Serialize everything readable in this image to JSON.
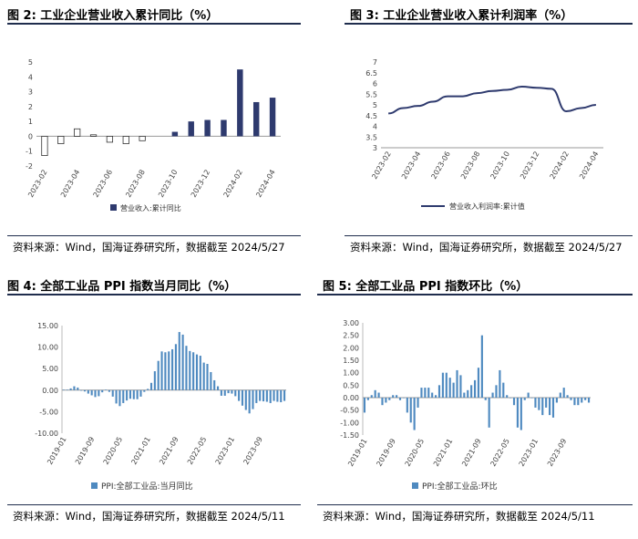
{
  "panels": {
    "p2": {
      "title": "图 2:  工业企业营业收入累计同比（%）",
      "source": "资料来源：Wind，国海证券研究所，数据截至 2024/5/27"
    },
    "p3": {
      "title": "图 3:  工业企业营业收入累计利润率（%）",
      "source": "资料来源：Wind，国海证券研究所，数据截至 2024/5/27"
    },
    "p4": {
      "title": "图 4:  全部工业品 PPI 指数当月同比（%）",
      "source": "资料来源：Wind，国海证券研究所，数据截至 2024/5/11"
    },
    "p5": {
      "title": "图 5:  全部工业品 PPI 指数环比（%）",
      "source": "资料来源：Wind，国海证券研究所，数据截至 2024/5/11"
    }
  },
  "colors": {
    "navy": "#2e3a6e",
    "steel": "#4f8ac0",
    "rule": "#1f2d4d"
  },
  "chart_data": [
    {
      "id": "c2",
      "type": "bar",
      "x": [
        "2023-02",
        "2023-03",
        "2023-04",
        "2023-05",
        "2023-06",
        "2023-07",
        "2023-08",
        "2023-09",
        "2023-10",
        "2023-11",
        "2023-12",
        "2024-01",
        "2024-02",
        "2024-03",
        "2024-04"
      ],
      "series": [
        {
          "name": "营业收入:累计同比",
          "values": [
            -1.3,
            -0.5,
            0.5,
            0.1,
            -0.4,
            -0.5,
            -0.3,
            null,
            0.3,
            1.0,
            1.1,
            1.1,
            4.5,
            2.3,
            2.6
          ]
        }
      ],
      "hollow_until": "2023-08",
      "tick_labels": [
        "2023-02",
        "2023-04",
        "2023-06",
        "2023-08",
        "2023-10",
        "2023-12",
        "2024-02",
        "2024-04"
      ],
      "ylim": [
        -2,
        5
      ],
      "yticks": [
        "-2",
        "-1",
        "0",
        "1",
        "2",
        "3",
        "4",
        "5"
      ]
    },
    {
      "id": "c3",
      "type": "line",
      "x": [
        "2023-02",
        "2023-03",
        "2023-04",
        "2023-05",
        "2023-06",
        "2023-07",
        "2023-08",
        "2023-09",
        "2023-10",
        "2023-11",
        "2023-12",
        "2024-01",
        "2024-02",
        "2024-03",
        "2024-04"
      ],
      "series": [
        {
          "name": "营业收入利润率:累计值",
          "values": [
            4.6,
            4.85,
            4.95,
            5.15,
            5.4,
            5.4,
            5.55,
            5.65,
            5.7,
            5.85,
            5.8,
            5.75,
            4.7,
            4.85,
            5.0
          ]
        }
      ],
      "tick_labels": [
        "2023-02",
        "2023-04",
        "2023-06",
        "2023-08",
        "2023-10",
        "2023-12",
        "2024-02",
        "2024-04"
      ],
      "ylim": [
        3,
        7
      ],
      "yticks": [
        "3",
        "3.5",
        "4",
        "4.5",
        "5",
        "5.5",
        "6",
        "6.5",
        "7"
      ]
    },
    {
      "id": "c4",
      "type": "bar",
      "start": "2019-01",
      "series": [
        {
          "name": "PPI:全部工业品:当月同比",
          "values": [
            0.1,
            0.1,
            0.4,
            0.9,
            0.6,
            0.0,
            -0.3,
            -0.8,
            -1.2,
            -1.6,
            -1.4,
            -0.5,
            0.1,
            -0.4,
            -1.5,
            -3.1,
            -3.7,
            -3.0,
            -2.4,
            -2.0,
            -2.1,
            -2.1,
            -1.5,
            -0.4,
            0.3,
            1.7,
            4.4,
            6.8,
            9.0,
            8.8,
            9.0,
            9.5,
            10.7,
            13.5,
            12.9,
            10.3,
            9.1,
            8.8,
            8.3,
            8.0,
            6.4,
            6.1,
            4.2,
            2.3,
            0.9,
            -1.3,
            -1.3,
            -0.7,
            -0.8,
            -1.4,
            -2.5,
            -3.6,
            -4.6,
            -5.4,
            -4.4,
            -3.0,
            -2.5,
            -2.6,
            -2.7,
            -3.0,
            -2.5,
            -2.7,
            -2.8,
            -2.5
          ]
        }
      ],
      "tick_labels": [
        "2019-01",
        "2019-09",
        "2020-05",
        "2021-01",
        "2021-09",
        "2022-05",
        "2023-01",
        "2023-09"
      ],
      "ylim": [
        -10,
        15
      ],
      "yticks": [
        "-10.00",
        "-5.00",
        "0.00",
        "5.00",
        "10.00",
        "15.00"
      ]
    },
    {
      "id": "c5",
      "type": "bar",
      "start": "2019-01",
      "series": [
        {
          "name": "PPI:全部工业品:环比",
          "values": [
            -0.6,
            -0.1,
            0.1,
            0.3,
            0.2,
            -0.3,
            -0.2,
            -0.1,
            0.1,
            0.1,
            -0.1,
            0.0,
            -0.6,
            -1.0,
            -1.3,
            -0.4,
            0.4,
            0.4,
            0.4,
            0.2,
            0.1,
            0.5,
            1.0,
            1.0,
            0.8,
            0.6,
            1.1,
            0.9,
            0.2,
            0.3,
            0.5,
            0.7,
            1.2,
            2.5,
            -0.1,
            -1.2,
            0.2,
            0.5,
            1.1,
            0.6,
            0.1,
            0.0,
            -0.3,
            -1.2,
            -1.3,
            -0.1,
            0.2,
            0.0,
            -0.4,
            -0.5,
            -0.7,
            -0.4,
            -0.7,
            -0.8,
            -0.2,
            0.2,
            0.4,
            0.1,
            -0.1,
            -0.3,
            -0.3,
            -0.2,
            -0.1,
            -0.2
          ]
        }
      ],
      "tick_labels": [
        "2019-01",
        "2019-09",
        "2020-05",
        "2021-01",
        "2021-09",
        "2022-05",
        "2023-01",
        "2023-09"
      ],
      "ylim": [
        -1.5,
        3.0
      ],
      "yticks": [
        "-1.50",
        "-1.00",
        "-0.50",
        "0.00",
        "0.50",
        "1.00",
        "1.50",
        "2.00",
        "2.50",
        "3.00"
      ]
    }
  ]
}
